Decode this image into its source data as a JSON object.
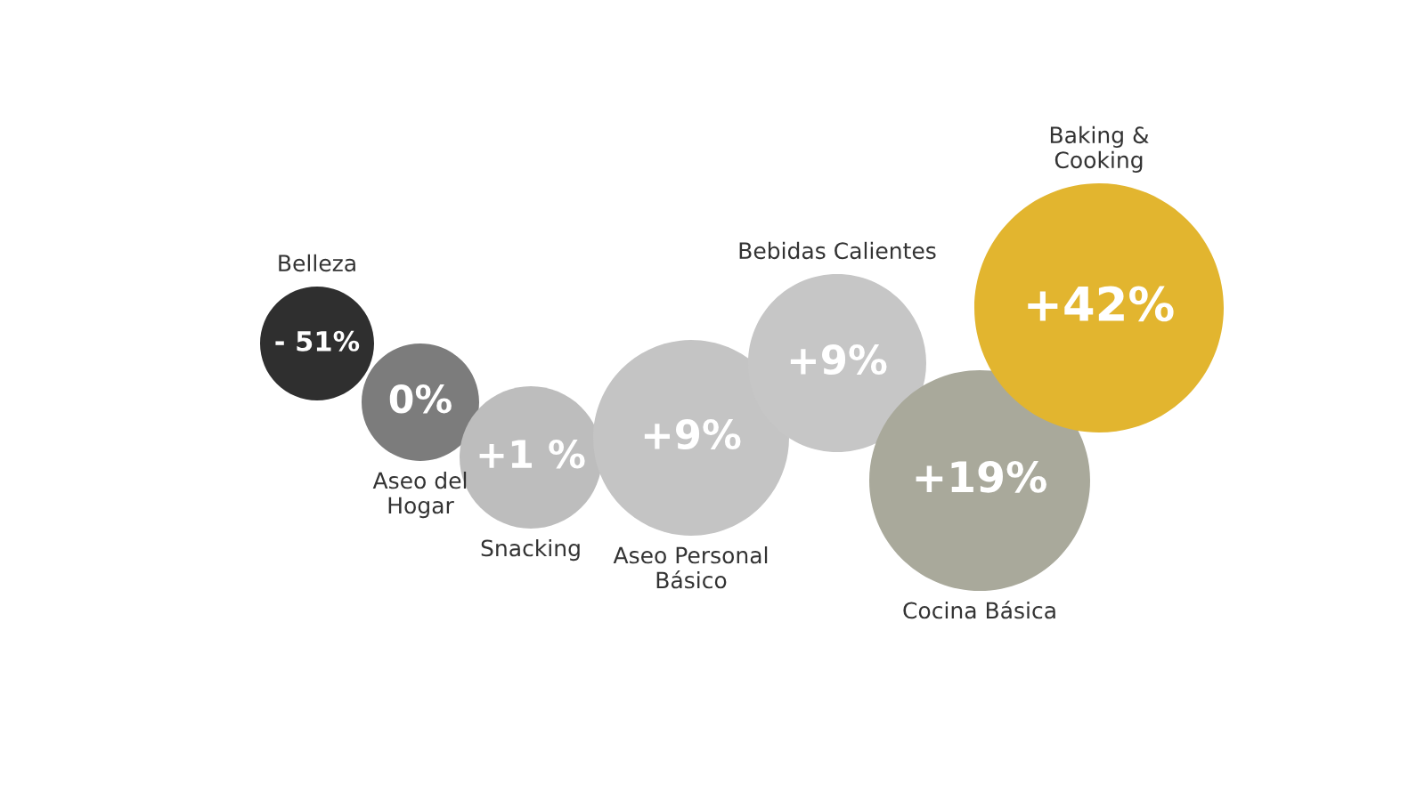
{
  "chart_data": {
    "type": "other",
    "categories": [
      "Belleza",
      "Aseo del\nHogar",
      "Snacking",
      "Aseo Personal\nBásico",
      "Bebidas Calientes",
      "Cocina Básica",
      "Baking &\nCooking"
    ],
    "values": [
      -51,
      0,
      1,
      9,
      9,
      19,
      42
    ],
    "value_labels": [
      "- 51%",
      "0%",
      "+1 %",
      "+9%",
      "+9%",
      "+19%",
      "+42%"
    ],
    "colors": [
      "#2f2f2f",
      "#7c7c7c",
      "#bdbdbd",
      "#c4c4c4",
      "#c6c6c6",
      "#a9a99b",
      "#e2b52f"
    ]
  }
}
